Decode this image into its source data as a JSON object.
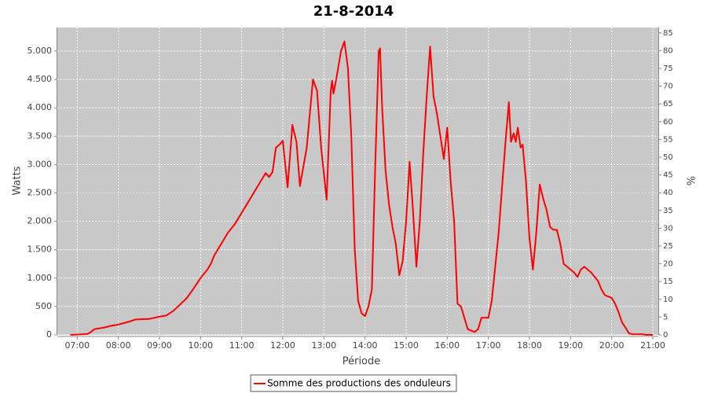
{
  "chart_data": {
    "type": "line",
    "title": "21-8-2014",
    "x_label": "Période",
    "y_label": "Watts",
    "y2_label": "%",
    "x": [
      "06:50",
      "07:00",
      "07:15",
      "07:20",
      "07:25",
      "07:40",
      "07:50",
      "08:00",
      "08:15",
      "08:25",
      "08:45",
      "09:00",
      "09:10",
      "09:20",
      "09:30",
      "09:40",
      "09:50",
      "10:00",
      "10:10",
      "10:15",
      "10:20",
      "10:30",
      "10:40",
      "10:50",
      "11:00",
      "11:10",
      "11:20",
      "11:30",
      "11:35",
      "11:40",
      "11:45",
      "11:50",
      "11:55",
      "12:00",
      "12:07",
      "12:14",
      "12:20",
      "12:25",
      "12:35",
      "12:44",
      "12:50",
      "12:56",
      "13:04",
      "13:10",
      "13:12",
      "13:14",
      "13:18",
      "13:25",
      "13:30",
      "13:35",
      "13:40",
      "13:45",
      "13:50",
      "13:55",
      "14:00",
      "14:05",
      "14:10",
      "14:15",
      "14:20",
      "14:22",
      "14:25",
      "14:30",
      "14:35",
      "14:40",
      "14:45",
      "14:50",
      "14:55",
      "15:00",
      "15:05",
      "15:10",
      "15:15",
      "15:20",
      "15:25",
      "15:30",
      "15:35",
      "15:40",
      "15:45",
      "15:50",
      "15:55",
      "16:00",
      "16:05",
      "16:10",
      "16:15",
      "16:20",
      "16:25",
      "16:30",
      "16:40",
      "16:45",
      "16:50",
      "17:00",
      "17:05",
      "17:10",
      "17:15",
      "17:20",
      "17:25",
      "17:30",
      "17:33",
      "17:37",
      "17:40",
      "17:43",
      "17:47",
      "17:50",
      "17:55",
      "18:00",
      "18:05",
      "18:10",
      "18:15",
      "18:20",
      "18:25",
      "18:30",
      "18:35",
      "18:40",
      "18:45",
      "18:50",
      "18:55",
      "19:05",
      "19:10",
      "19:15",
      "19:20",
      "19:30",
      "19:40",
      "19:45",
      "19:50",
      "20:00",
      "20:05",
      "20:10",
      "20:15",
      "20:20",
      "20:25",
      "20:30",
      "20:45",
      "20:50",
      "21:00"
    ],
    "series": [
      {
        "name": "Somme des productions des onduleurs",
        "color": "#ff0000",
        "values": [
          0,
          5,
          15,
          50,
          100,
          130,
          160,
          180,
          230,
          270,
          280,
          320,
          340,
          420,
          530,
          650,
          820,
          1000,
          1150,
          1250,
          1400,
          1600,
          1800,
          1950,
          2150,
          2350,
          2550,
          2750,
          2850,
          2780,
          2870,
          3300,
          3350,
          3420,
          2600,
          3700,
          3400,
          2620,
          3300,
          4500,
          4300,
          3300,
          2380,
          4300,
          4480,
          4250,
          4500,
          5000,
          5170,
          4700,
          3500,
          1500,
          600,
          380,
          330,
          500,
          800,
          3000,
          5000,
          5050,
          4000,
          2900,
          2300,
          1900,
          1600,
          1050,
          1300,
          2000,
          3050,
          2200,
          1200,
          2000,
          3200,
          4200,
          5080,
          4200,
          3900,
          3500,
          3100,
          3650,
          2700,
          2000,
          550,
          500,
          300,
          100,
          50,
          100,
          300,
          300,
          600,
          1200,
          1800,
          2600,
          3400,
          4100,
          3400,
          3550,
          3400,
          3650,
          3300,
          3350,
          2700,
          1700,
          1150,
          1800,
          2650,
          2400,
          2200,
          1900,
          1850,
          1850,
          1600,
          1250,
          1200,
          1100,
          1020,
          1150,
          1200,
          1100,
          950,
          800,
          700,
          650,
          550,
          400,
          220,
          130,
          30,
          10,
          10,
          0,
          0
        ]
      }
    ],
    "xlim": [
      "06:31",
      "21:08"
    ],
    "xticks": [
      "07:00",
      "08:00",
      "09:00",
      "10:00",
      "11:00",
      "12:00",
      "13:00",
      "14:00",
      "15:00",
      "16:00",
      "17:00",
      "18:00",
      "19:00",
      "20:00",
      "21:00"
    ],
    "ylim": [
      0,
      5415
    ],
    "yticks": [
      0,
      500,
      {
        "value": 1000,
        "label": "1.000"
      },
      {
        "value": 1500,
        "label": "1.500"
      },
      {
        "value": 2000,
        "label": "2.000"
      },
      {
        "value": 2500,
        "label": "2.500"
      },
      {
        "value": 3000,
        "label": "3.000"
      },
      {
        "value": 3500,
        "label": "3.500"
      },
      {
        "value": 4000,
        "label": "4.000"
      },
      {
        "value": 4500,
        "label": "4.500"
      },
      {
        "value": 5000,
        "label": "5.000"
      }
    ],
    "y2lim": [
      0,
      86.5
    ],
    "y2ticks": [
      0,
      5,
      10,
      15,
      20,
      25,
      30,
      35,
      40,
      45,
      50,
      55,
      60,
      65,
      70,
      75,
      80,
      85
    ],
    "grid": true,
    "legend": "bottom"
  }
}
